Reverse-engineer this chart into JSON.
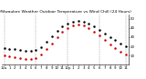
{
  "title": "Milwaukee Weather Outdoor Temperature vs Wind Chill (24 Hours)",
  "title_fontsize": 3.2,
  "background_color": "#ffffff",
  "temp_color": "#000000",
  "windchill_color": "#cc0000",
  "blue_color": "#0000cc",
  "grid_color": "#999999",
  "hours": [
    0,
    1,
    2,
    3,
    4,
    5,
    6,
    7,
    8,
    9,
    10,
    11,
    12,
    13,
    14,
    15,
    16,
    17,
    18,
    19,
    20,
    21,
    22,
    23
  ],
  "temp": [
    18,
    17,
    17,
    16,
    15,
    15,
    16,
    19,
    25,
    31,
    37,
    42,
    45,
    47,
    48,
    47,
    45,
    42,
    38,
    34,
    30,
    27,
    23,
    20
  ],
  "windchill": [
    10,
    9,
    8,
    7,
    6,
    6,
    7,
    11,
    17,
    23,
    30,
    36,
    40,
    43,
    44,
    43,
    40,
    36,
    32,
    27,
    22,
    18,
    14,
    11
  ],
  "ylim": [
    0,
    55
  ],
  "ytick_vals": [
    10,
    20,
    30,
    40,
    50
  ],
  "ytick_labels": [
    "10",
    "20",
    "30",
    "40",
    "50"
  ],
  "xtick_labels": [
    "12a",
    "1",
    "2",
    "3",
    "4",
    "5",
    "6",
    "7",
    "8",
    "9",
    "10",
    "11",
    "12p",
    "1",
    "2",
    "3",
    "4",
    "5",
    "6",
    "7",
    "8",
    "9",
    "10",
    "11"
  ],
  "xlabel_fontsize": 2.8,
  "ylabel_fontsize": 2.8,
  "marker_size": 0.8,
  "vgrid_positions": [
    0,
    6,
    12,
    18,
    23
  ]
}
